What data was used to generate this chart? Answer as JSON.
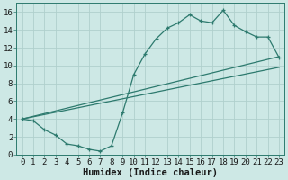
{
  "xlabel": "Humidex (Indice chaleur)",
  "xlim": [
    -0.5,
    23.5
  ],
  "ylim": [
    0,
    17
  ],
  "xticks": [
    0,
    1,
    2,
    3,
    4,
    5,
    6,
    7,
    8,
    9,
    10,
    11,
    12,
    13,
    14,
    15,
    16,
    17,
    18,
    19,
    20,
    21,
    22,
    23
  ],
  "yticks": [
    0,
    2,
    4,
    6,
    8,
    10,
    12,
    14,
    16
  ],
  "bg_color": "#cde8e5",
  "grid_color": "#b0d0cc",
  "line_color": "#2d7a6e",
  "line1_x": [
    0,
    1,
    2,
    3,
    4,
    5,
    6,
    7,
    8,
    9,
    10,
    11,
    12,
    13,
    14,
    15,
    16,
    17,
    18,
    19,
    20,
    21,
    22,
    23
  ],
  "line1_y": [
    4.0,
    3.8,
    2.8,
    2.2,
    1.2,
    1.0,
    0.6,
    0.4,
    1.0,
    4.7,
    9.0,
    11.3,
    13.0,
    14.2,
    14.8,
    15.7,
    15.0,
    14.8,
    16.2,
    14.5,
    13.8,
    13.2,
    13.2,
    10.9
  ],
  "line2_x": [
    0,
    23
  ],
  "line2_y": [
    4.0,
    11.0
  ],
  "line3_x": [
    0,
    23
  ],
  "line3_y": [
    4.0,
    9.8
  ],
  "font_family": "monospace",
  "xlabel_fontsize": 7.5,
  "tick_fontsize": 6.5
}
